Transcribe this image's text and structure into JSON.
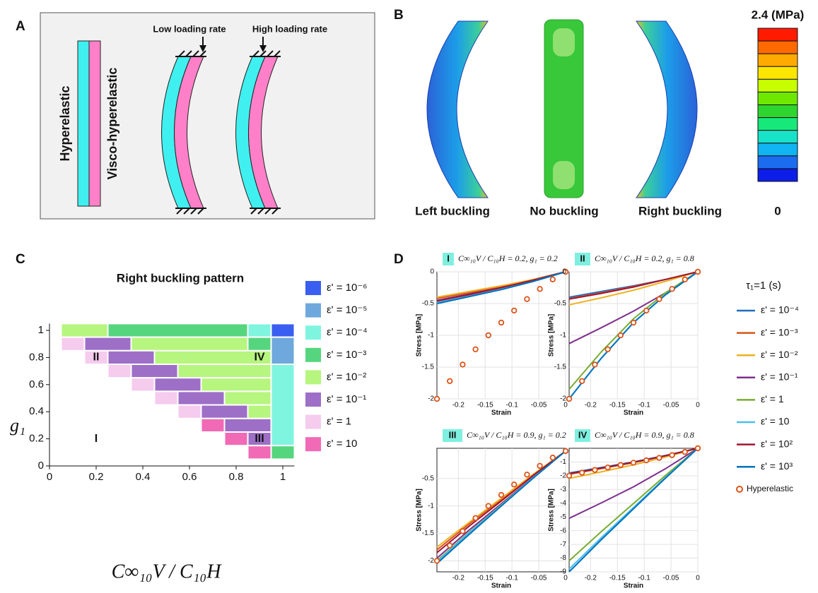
{
  "panel_labels": [
    "A",
    "B",
    "C",
    "D"
  ],
  "panel_a": {
    "hyperelastic": "Hyperelastic",
    "visco_hyperelastic": "Visco-hyperelastic",
    "low_rate": "Low loading rate",
    "high_rate": "High loading rate"
  },
  "panel_b": {
    "captions": [
      "Left buckling",
      "No buckling",
      "Right buckling"
    ],
    "colorbar_max": "2.4 (MPa)",
    "colorbar_min": "0",
    "colorbar_colors": [
      "#ff1a00",
      "#ff6a00",
      "#ffaa00",
      "#ffe600",
      "#c8ff00",
      "#6fe800",
      "#2ed52e",
      "#17e87a",
      "#18e3c8",
      "#10b4f0",
      "#1c6cf0",
      "#0d1ee8"
    ]
  },
  "chart_data": [
    {
      "type": "phase_map",
      "title": "Right buckling pattern",
      "xlabel": "C∞₁₀V / C₁₀H",
      "ylabel": "g₁",
      "xlim": [
        0,
        1.05
      ],
      "ylim": [
        0,
        1.05
      ],
      "xticks": [
        0,
        0.2,
        0.4,
        0.6,
        0.8,
        1
      ],
      "yticks": [
        0,
        0.2,
        0.4,
        0.6,
        0.8,
        1
      ],
      "levels": [
        {
          "name": "ε' = 10⁻⁶",
          "color": "#3a5ef0"
        },
        {
          "name": "ε' = 10⁻⁵",
          "color": "#6fa8dc"
        },
        {
          "name": "ε' = 10⁻⁴",
          "color": "#7ff5e0"
        },
        {
          "name": "ε' = 10⁻³",
          "color": "#55d67e"
        },
        {
          "name": "ε' = 10⁻²",
          "color": "#b6f57e"
        },
        {
          "name": "ε' = 10⁻¹",
          "color": "#9d6fc7"
        },
        {
          "name": "ε' = 1",
          "color": "#f5cbee"
        },
        {
          "name": "ε' = 10",
          "color": "#f06ab6"
        }
      ],
      "cells": [
        {
          "x": [
            0.05,
            0.25
          ],
          "y": [
            0.95,
            1.05
          ],
          "level": 4
        },
        {
          "x": [
            0.25,
            0.85
          ],
          "y": [
            0.95,
            1.05
          ],
          "level": 3
        },
        {
          "x": [
            0.85,
            0.95
          ],
          "y": [
            0.95,
            1.05
          ],
          "level": 2
        },
        {
          "x": [
            0.95,
            1.05
          ],
          "y": [
            0.95,
            1.05
          ],
          "level": 0
        },
        {
          "x": [
            0.95,
            1.05
          ],
          "y": [
            0.75,
            0.95
          ],
          "level": 1
        },
        {
          "x": [
            0.95,
            1.05
          ],
          "y": [
            0.15,
            0.75
          ],
          "level": 2
        },
        {
          "x": [
            0.95,
            1.05
          ],
          "y": [
            0.05,
            0.15
          ],
          "level": 3
        },
        {
          "x": [
            0.05,
            0.15
          ],
          "y": [
            0.85,
            0.95
          ],
          "level": 6
        },
        {
          "x": [
            0.15,
            0.35
          ],
          "y": [
            0.85,
            0.95
          ],
          "level": 5
        },
        {
          "x": [
            0.35,
            0.85
          ],
          "y": [
            0.85,
            0.95
          ],
          "level": 4
        },
        {
          "x": [
            0.85,
            0.95
          ],
          "y": [
            0.85,
            0.95
          ],
          "level": 3
        },
        {
          "x": [
            0.15,
            0.25
          ],
          "y": [
            0.75,
            0.85
          ],
          "level": 6
        },
        {
          "x": [
            0.25,
            0.45
          ],
          "y": [
            0.75,
            0.85
          ],
          "level": 5
        },
        {
          "x": [
            0.45,
            0.95
          ],
          "y": [
            0.75,
            0.85
          ],
          "level": 4
        },
        {
          "x": [
            0.25,
            0.35
          ],
          "y": [
            0.65,
            0.75
          ],
          "level": 6
        },
        {
          "x": [
            0.35,
            0.55
          ],
          "y": [
            0.65,
            0.75
          ],
          "level": 5
        },
        {
          "x": [
            0.55,
            0.95
          ],
          "y": [
            0.65,
            0.75
          ],
          "level": 4
        },
        {
          "x": [
            0.35,
            0.45
          ],
          "y": [
            0.55,
            0.65
          ],
          "level": 6
        },
        {
          "x": [
            0.45,
            0.65
          ],
          "y": [
            0.55,
            0.65
          ],
          "level": 5
        },
        {
          "x": [
            0.65,
            0.95
          ],
          "y": [
            0.55,
            0.65
          ],
          "level": 4
        },
        {
          "x": [
            0.45,
            0.55
          ],
          "y": [
            0.45,
            0.55
          ],
          "level": 6
        },
        {
          "x": [
            0.55,
            0.75
          ],
          "y": [
            0.45,
            0.55
          ],
          "level": 5
        },
        {
          "x": [
            0.75,
            0.95
          ],
          "y": [
            0.45,
            0.55
          ],
          "level": 4
        },
        {
          "x": [
            0.55,
            0.65
          ],
          "y": [
            0.35,
            0.45
          ],
          "level": 6
        },
        {
          "x": [
            0.65,
            0.85
          ],
          "y": [
            0.35,
            0.45
          ],
          "level": 5
        },
        {
          "x": [
            0.85,
            0.95
          ],
          "y": [
            0.35,
            0.45
          ],
          "level": 4
        },
        {
          "x": [
            0.65,
            0.75
          ],
          "y": [
            0.25,
            0.35
          ],
          "level": 7
        },
        {
          "x": [
            0.75,
            0.95
          ],
          "y": [
            0.25,
            0.35
          ],
          "level": 5
        },
        {
          "x": [
            0.75,
            0.85
          ],
          "y": [
            0.15,
            0.25
          ],
          "level": 7
        },
        {
          "x": [
            0.85,
            0.95
          ],
          "y": [
            0.15,
            0.25
          ],
          "level": 5
        },
        {
          "x": [
            0.85,
            0.95
          ],
          "y": [
            0.05,
            0.15
          ],
          "level": 7
        }
      ],
      "annotations": [
        "I",
        "II",
        "III",
        "IV"
      ]
    },
    {
      "type": "line_panels",
      "legend_title": "τ₁=1 (s)",
      "xlabel": "Strain",
      "ylabel": "Stress [MPa]",
      "grid": true,
      "x": [
        -0.24,
        -0.18,
        -0.12,
        -0.06,
        0
      ],
      "hyperelastic_x": [
        -0.24,
        -0.216,
        -0.192,
        -0.168,
        -0.144,
        -0.12,
        -0.096,
        -0.072,
        -0.048,
        -0.024,
        0
      ],
      "series": [
        {
          "name": "ε' = 10⁻⁴",
          "color": "#1f6fbf"
        },
        {
          "name": "ε' = 10⁻³",
          "color": "#d9541a"
        },
        {
          "name": "ε' = 10⁻²",
          "color": "#edb120"
        },
        {
          "name": "ε' = 10⁻¹",
          "color": "#7e2f8e"
        },
        {
          "name": "ε' = 1",
          "color": "#77ac30"
        },
        {
          "name": "ε' = 10",
          "color": "#4dbeee"
        },
        {
          "name": "ε' = 10²",
          "color": "#a2142f"
        },
        {
          "name": "ε' = 10³",
          "color": "#0072bd"
        }
      ],
      "hyperelastic": {
        "name": "Hyperelastic",
        "color": "#d9541a"
      },
      "panels": [
        {
          "label": "I",
          "title": "C∞₁₀V / C₁₀H = 0.2, g₁ = 0.2",
          "xlim": [
            -0.24,
            0
          ],
          "ylim": [
            -2,
            0
          ],
          "xticks": [
            -0.2,
            -0.15,
            -0.1,
            -0.05,
            0
          ],
          "yticks": [
            -2,
            -1.5,
            -1,
            -0.5,
            0
          ],
          "values": [
            [
              -0.5,
              -0.39,
              -0.28,
              -0.15,
              0
            ],
            [
              -0.42,
              -0.33,
              -0.23,
              -0.12,
              0
            ],
            [
              -0.4,
              -0.31,
              -0.22,
              -0.12,
              0
            ],
            [
              -0.45,
              -0.35,
              -0.25,
              -0.13,
              0
            ],
            [
              -0.48,
              -0.37,
              -0.26,
              -0.14,
              0
            ],
            [
              -0.48,
              -0.37,
              -0.26,
              -0.14,
              0
            ],
            [
              -0.46,
              -0.36,
              -0.25,
              -0.13,
              0
            ],
            [
              -0.5,
              -0.39,
              -0.28,
              -0.15,
              0
            ]
          ],
          "hyperelastic": [
            -2,
            -1.72,
            -1.46,
            -1.22,
            -1,
            -0.8,
            -0.61,
            -0.43,
            -0.27,
            -0.12,
            0
          ]
        },
        {
          "label": "II",
          "title": "C∞₁₀V / C₁₀H = 0.2, g₁ = 0.8",
          "xlim": [
            -0.24,
            0
          ],
          "ylim": [
            -2,
            0
          ],
          "xticks": [
            -0.2,
            -0.15,
            -0.1,
            -0.05,
            0
          ],
          "yticks": [
            -2,
            -1.5,
            -1,
            -0.5,
            0
          ],
          "values": [
            [
              -0.4,
              -0.31,
              -0.22,
              -0.12,
              0
            ],
            [
              -0.42,
              -0.33,
              -0.23,
              -0.12,
              0
            ],
            [
              -0.52,
              -0.41,
              -0.29,
              -0.15,
              0
            ],
            [
              -1.13,
              -0.88,
              -0.62,
              -0.33,
              0
            ],
            [
              -1.85,
              -1.26,
              -0.74,
              -0.33,
              0
            ],
            [
              -2,
              -1.36,
              -0.8,
              -0.36,
              0
            ],
            [
              -0.43,
              -0.34,
              -0.24,
              -0.12,
              0
            ],
            [
              -2,
              -1.36,
              -0.8,
              -0.36,
              0
            ]
          ],
          "hyperelastic": [
            -2,
            -1.72,
            -1.46,
            -1.22,
            -1,
            -0.8,
            -0.61,
            -0.43,
            -0.27,
            -0.12,
            0
          ]
        },
        {
          "label": "III",
          "title": "C∞₁₀V / C₁₀H = 0.9, g₁ = 0.2",
          "xlim": [
            -0.24,
            0
          ],
          "ylim": [
            -2.2,
            0.05
          ],
          "xticks": [
            -0.2,
            -0.15,
            -0.1,
            -0.05,
            0
          ],
          "yticks": [
            -2,
            -1.5,
            -1,
            -0.5
          ],
          "values": [
            [
              -2.02,
              -1.49,
              -0.99,
              -0.48,
              0
            ],
            [
              -1.8,
              -1.33,
              -0.88,
              -0.43,
              0
            ],
            [
              -1.75,
              -1.3,
              -0.86,
              -0.42,
              0
            ],
            [
              -1.95,
              -1.44,
              -0.96,
              -0.47,
              0
            ],
            [
              -2,
              -1.48,
              -0.98,
              -0.48,
              0
            ],
            [
              -2.02,
              -1.49,
              -0.99,
              -0.48,
              0
            ],
            [
              -1.85,
              -1.37,
              -0.91,
              -0.44,
              0
            ],
            [
              -2.05,
              -1.52,
              -1,
              -0.49,
              0
            ]
          ],
          "hyperelastic": [
            -2,
            -1.72,
            -1.46,
            -1.22,
            -1,
            -0.8,
            -0.61,
            -0.43,
            -0.27,
            -0.12,
            0
          ]
        },
        {
          "label": "IV",
          "title": "C∞₁₀V / C₁₀H = 0.9, g₁ = 0.8",
          "xlim": [
            -0.24,
            0
          ],
          "ylim": [
            -9,
            0
          ],
          "xticks": [
            -0.2,
            -0.15,
            -0.1,
            -0.05,
            0
          ],
          "yticks": [
            -9,
            -8,
            -7,
            -6,
            -5,
            -4,
            -3,
            -2,
            -1
          ],
          "values": [
            [
              -1.8,
              -1.4,
              -0.99,
              -0.52,
              0
            ],
            [
              -1.9,
              -1.48,
              -1.05,
              -0.55,
              0
            ],
            [
              -2.2,
              -1.72,
              -1.21,
              -0.64,
              0
            ],
            [
              -5.1,
              -3.98,
              -2.81,
              -1.48,
              0
            ],
            [
              -8.2,
              -6.07,
              -4.02,
              -1.97,
              0
            ],
            [
              -8.8,
              -6.51,
              -4.31,
              -2.11,
              0
            ],
            [
              -1.85,
              -1.44,
              -1.02,
              -0.54,
              0
            ],
            [
              -9,
              -6.66,
              -4.41,
              -2.16,
              0
            ]
          ],
          "hyperelastic": [
            -2,
            -1.78,
            -1.58,
            -1.4,
            -1.22,
            -1.05,
            -0.88,
            -0.7,
            -0.5,
            -0.27,
            0
          ]
        }
      ]
    }
  ]
}
